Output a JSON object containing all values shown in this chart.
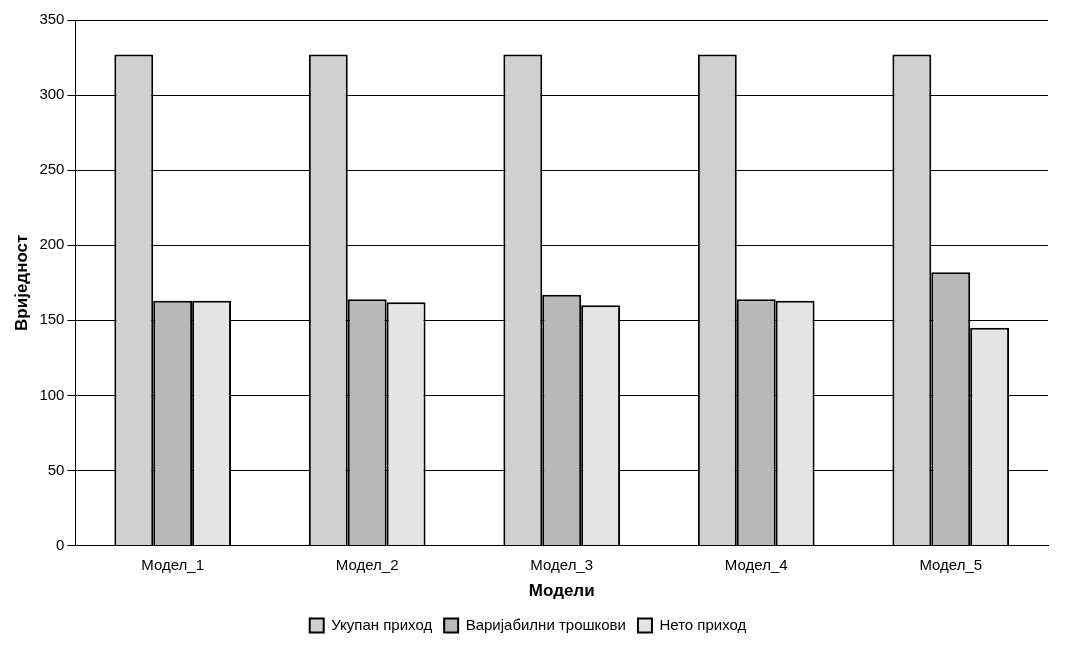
{
  "chart_data": {
    "type": "bar",
    "xlabel": "Модели",
    "ylabel": "Вриједност",
    "categories": [
      "Модел_1",
      "Модел_2",
      "Модел_3",
      "Модел_4",
      "Модел_5"
    ],
    "series": [
      {
        "name": "Укупан приход",
        "color": "#d0d0d0",
        "values": [
          327,
          327,
          327,
          327,
          327
        ]
      },
      {
        "name": "Варијабилни трошкови",
        "color": "#b8b8b8",
        "values": [
          163,
          164,
          167,
          164,
          182
        ]
      },
      {
        "name": "Нето приход",
        "color": "#e4e4e4",
        "values": [
          163,
          162,
          160,
          163,
          145
        ]
      }
    ],
    "ylim": [
      0,
      350
    ],
    "yticks": [
      0,
      50,
      100,
      150,
      200,
      250,
      300,
      350
    ],
    "grid": "y",
    "legend": "bottom"
  }
}
